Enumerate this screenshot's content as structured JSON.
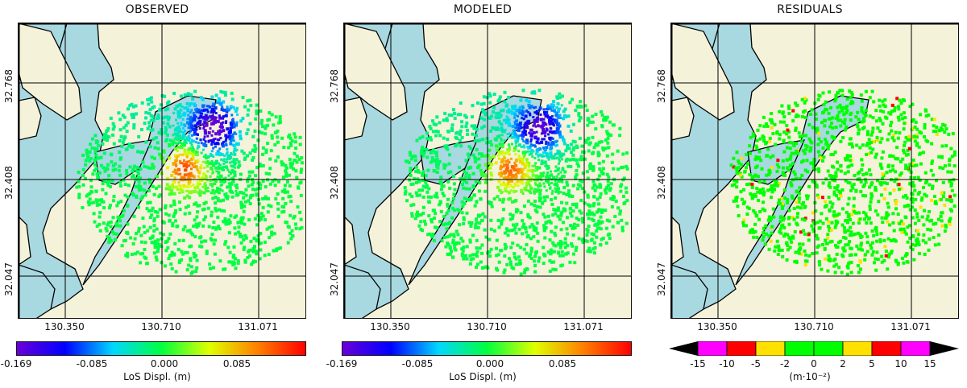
{
  "panels": [
    {
      "title": "OBSERVED",
      "colorbar": "continuous",
      "field": "observed"
    },
    {
      "title": "MODELED",
      "colorbar": "continuous",
      "field": "modeled"
    },
    {
      "title": "RESIDUALS",
      "colorbar": "discrete",
      "field": "residuals"
    }
  ],
  "axes": {
    "x_ticks": [
      "130.350",
      "130.710",
      "131.071"
    ],
    "y_ticks": [
      "32.768",
      "32.408",
      "32.047"
    ]
  },
  "colorbar_continuous": {
    "ticks": [
      "-0.169",
      "-0.085",
      "0.000",
      "0.085"
    ],
    "label": "LoS Displ. (m)",
    "range": [
      -0.169,
      0.169
    ],
    "colors": [
      "#6a00d8",
      "#0000ff",
      "#00d8ff",
      "#00ff40",
      "#e0ff00",
      "#ff8000",
      "#ff0000"
    ]
  },
  "colorbar_discrete": {
    "ticks": [
      "-15",
      "-10",
      "-5",
      "-2",
      "0",
      "2",
      "5",
      "10",
      "15"
    ],
    "label": "(m·10⁻²)",
    "bins": [
      {
        "from": -15,
        "to": -10,
        "color": "#ff00ff"
      },
      {
        "from": -10,
        "to": -5,
        "color": "#ff0000"
      },
      {
        "from": -5,
        "to": -2,
        "color": "#ffe000"
      },
      {
        "from": -2,
        "to": 0,
        "color": "#00ff00"
      },
      {
        "from": 0,
        "to": 2,
        "color": "#00ff00"
      },
      {
        "from": 2,
        "to": 5,
        "color": "#ffe000"
      },
      {
        "from": 5,
        "to": 10,
        "color": "#ff0000"
      },
      {
        "from": 10,
        "to": 15,
        "color": "#ff00ff"
      }
    ],
    "extend_color": "#000000"
  },
  "colors": {
    "land": "#f5f2da",
    "water": "#a8d8e0",
    "coast": "#000000"
  },
  "chart_data": [
    {
      "type": "heatmap",
      "title": "OBSERVED",
      "xlabel": "",
      "ylabel": "",
      "x_ticks": [
        130.35,
        130.71,
        131.071
      ],
      "y_ticks": [
        32.768,
        32.408,
        32.047
      ],
      "colorbar_label": "LoS Displ. (m)",
      "vmin": -0.169,
      "vmax": 0.169,
      "features": [
        {
          "name": "negative lobe",
          "value": -0.169
        },
        {
          "name": "positive lobe",
          "value": 0.15
        },
        {
          "name": "background",
          "value": 0.0
        }
      ]
    },
    {
      "type": "heatmap",
      "title": "MODELED",
      "xlabel": "",
      "ylabel": "",
      "x_ticks": [
        130.35,
        130.71,
        131.071
      ],
      "y_ticks": [
        32.768,
        32.408,
        32.047
      ],
      "colorbar_label": "LoS Displ. (m)",
      "vmin": -0.169,
      "vmax": 0.169,
      "features": [
        {
          "name": "negative lobe",
          "value": -0.169
        },
        {
          "name": "positive lobe",
          "value": 0.15
        },
        {
          "name": "background",
          "value": 0.0
        }
      ]
    },
    {
      "type": "heatmap",
      "title": "RESIDUALS",
      "xlabel": "",
      "ylabel": "",
      "x_ticks": [
        130.35,
        130.71,
        131.071
      ],
      "y_ticks": [
        32.768,
        32.408,
        32.047
      ],
      "colorbar_label": "(m·10⁻²)",
      "vmin": -15,
      "vmax": 15,
      "features": [
        {
          "name": "background",
          "value": 0
        },
        {
          "name": "minor residual patches",
          "value": 3
        }
      ]
    }
  ]
}
